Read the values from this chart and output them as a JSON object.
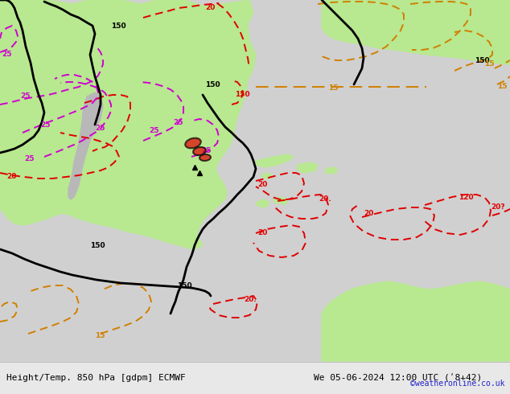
{
  "title_left": "Height/Temp. 850 hPa [gdpm] ECMWF",
  "title_right": "We 05-06-2024 12:00 UTC (ʹ8+42)",
  "copyright": "©weatheronline.co.uk",
  "bg_color": "#d0d0d0",
  "ocean_color": "#d0d0d0",
  "land_green_color": "#b8e890",
  "land_gray_color": "#b8b8b8",
  "contour_black_color": "#000000",
  "contour_red_color": "#e00000",
  "contour_magenta_color": "#d000d0",
  "contour_orange_color": "#d08000",
  "label_fontsize": 6.5,
  "title_fontsize": 8,
  "copyright_fontsize": 7,
  "figsize": [
    6.34,
    4.9
  ],
  "dpi": 100
}
